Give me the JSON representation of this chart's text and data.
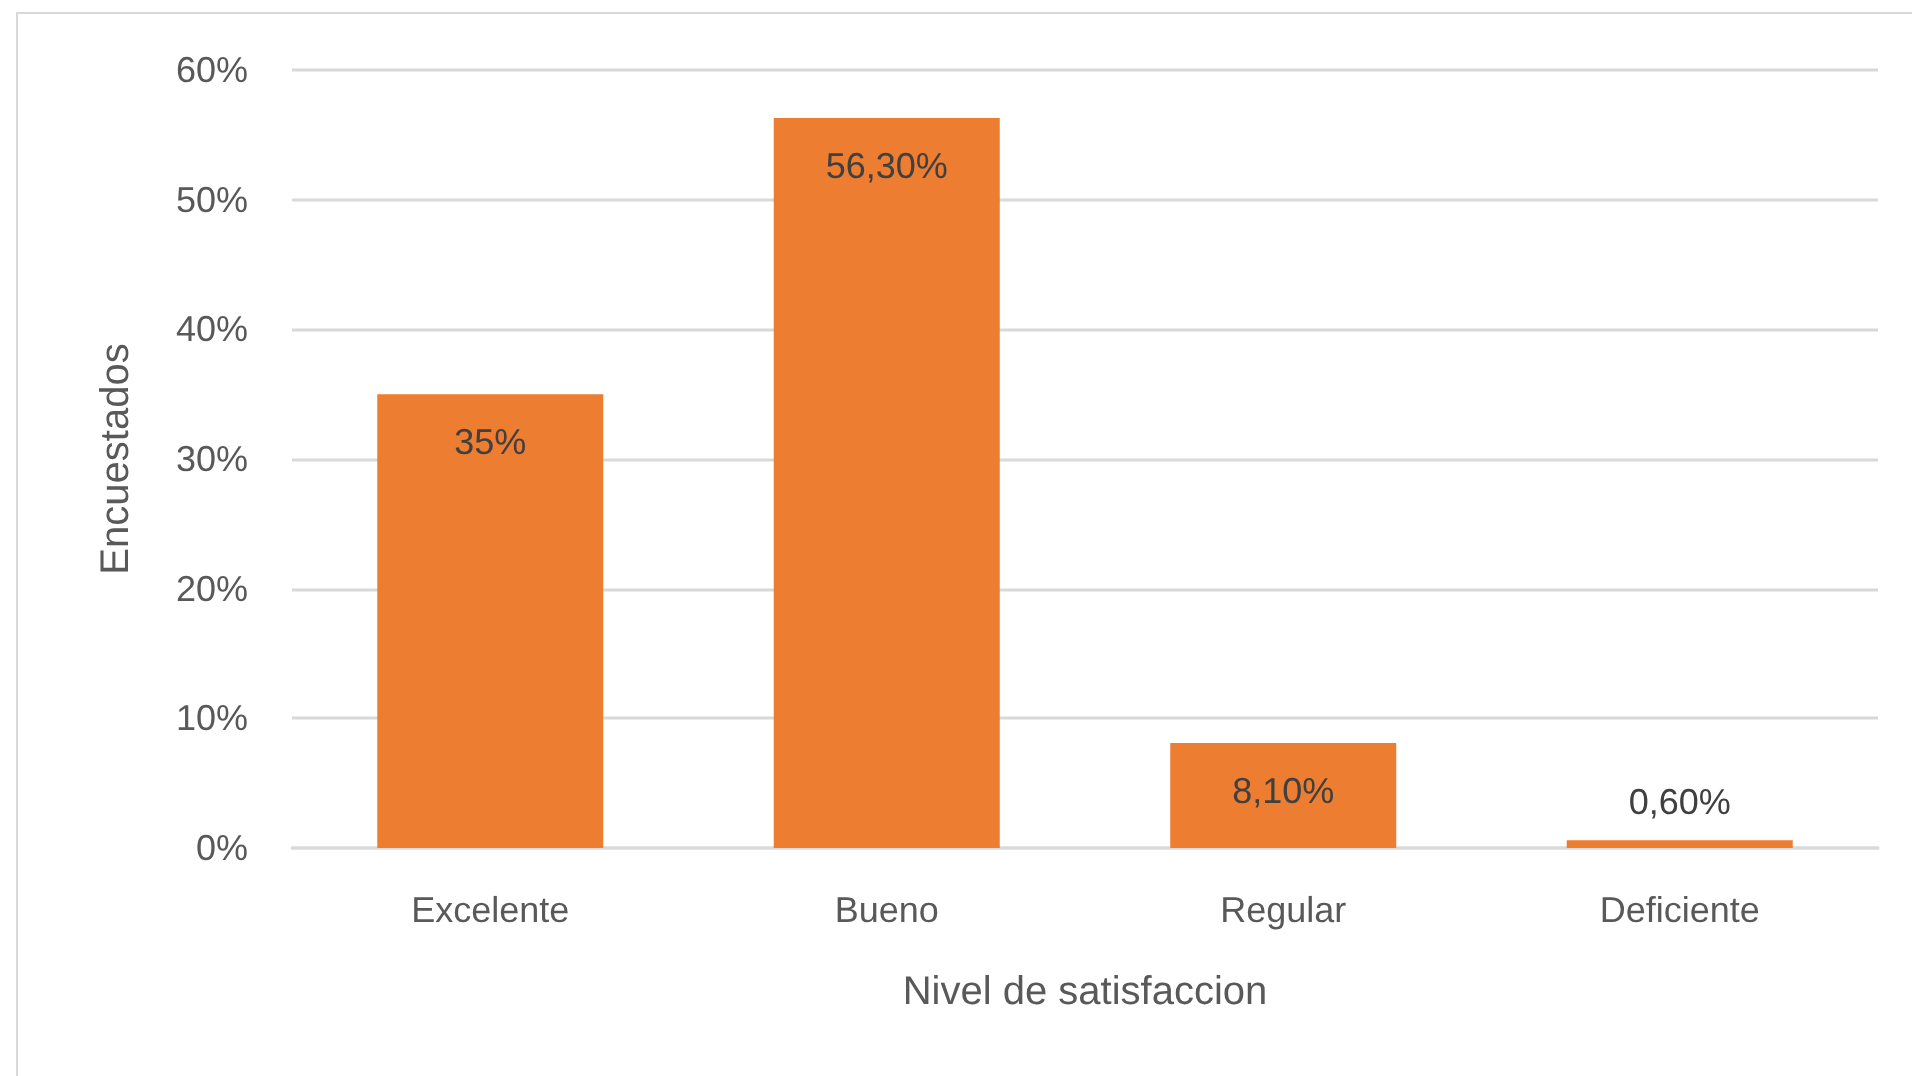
{
  "chart_data": {
    "type": "bar",
    "xlabel": "Nivel de satisfaccion",
    "ylabel": "Encuestados",
    "categories": [
      "Excelente",
      "Bueno",
      "Regular",
      "Deficiente"
    ],
    "values": [
      35,
      56.3,
      8.1,
      0.6
    ],
    "color": "#ed7d31",
    "value_labels": [
      "35%",
      "56,30%",
      "8,10%",
      "0,60%"
    ],
    "ylim": [
      0,
      60
    ],
    "yticks": [
      {
        "value": 0,
        "label": "0%"
      },
      {
        "value": 10,
        "label": "10%"
      },
      {
        "value": 20,
        "label": "20%"
      },
      {
        "value": 30,
        "label": "30%"
      },
      {
        "value": 40,
        "label": "40%"
      },
      {
        "value": 50,
        "label": "50%"
      },
      {
        "value": 60,
        "label": "60%"
      }
    ],
    "grid": "y"
  }
}
